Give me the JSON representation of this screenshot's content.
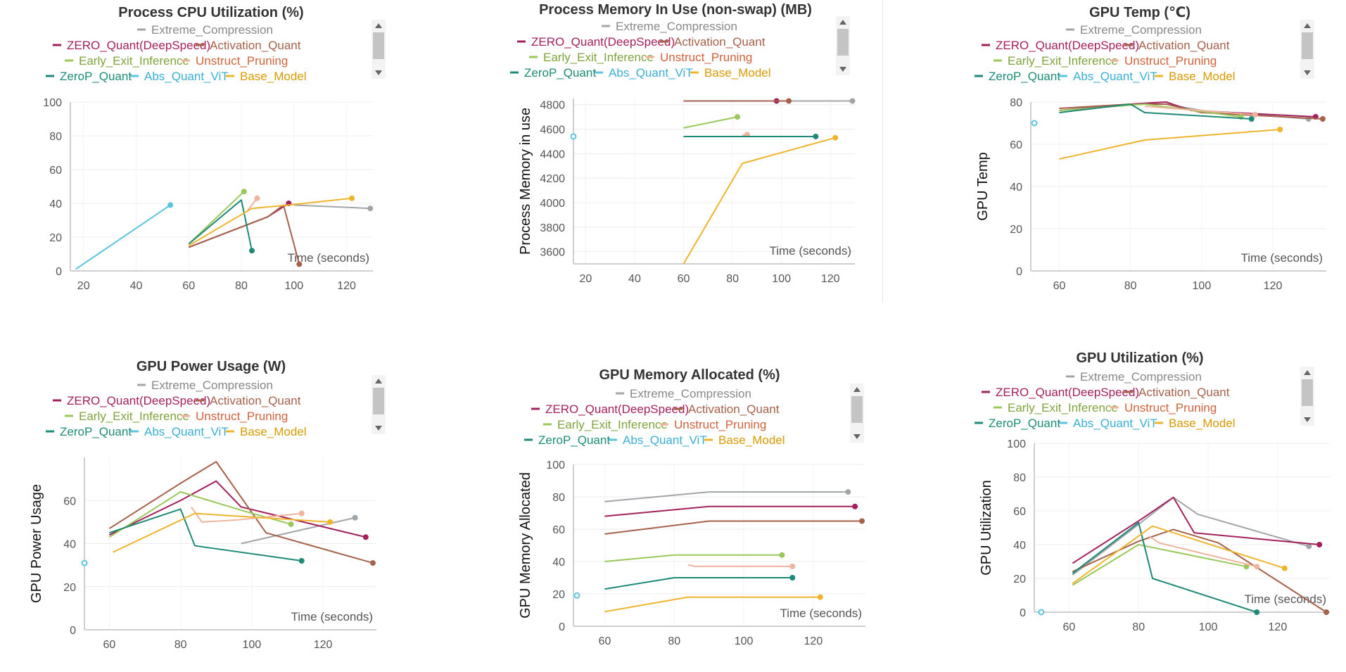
{
  "series_colors": {
    "Extreme_Compression": "#a2a5a8",
    "ZERO_Quant(DeepSpeed)": "#a3205c",
    "Activation_Quant": "#a5614a",
    "Early_Exit_Inference": "#9ac85a",
    "Unstruct_Pruning": "#f0b49c",
    "ZeroP_Quant": "#1d8a77",
    "Abs_Quant_ViT": "#5bc5e0",
    "Base_Model": "#eeb52c"
  },
  "legend_text_colors": {
    "Extreme_Compression": "#888888",
    "ZERO_Quant(DeepSpeed)": "#a3205c",
    "Activation_Quant": "#a5614a",
    "Early_Exit_Inference": "#7ea33c",
    "Unstruct_Pruning": "#d0623c",
    "ZeroP_Quant": "#1d8a77",
    "Abs_Quant_ViT": "#3aaed3",
    "Base_Model": "#d99a00"
  },
  "chart_data": [
    {
      "id": "cpu",
      "type": "line",
      "title": "Process CPU Utilization (%)",
      "ylabel": "Process CPU Utilization",
      "xlabel": "Time (seconds)",
      "xlim": [
        15,
        130
      ],
      "ylim": [
        0,
        100
      ],
      "xticks": [
        20,
        40,
        60,
        80,
        100,
        120
      ],
      "yticks": [
        0,
        20,
        40,
        60,
        80,
        100
      ],
      "series": [
        {
          "name": "Extreme_Compression",
          "points": [
            [
              100,
              39
            ],
            [
              129,
              37
            ]
          ]
        },
        {
          "name": "ZERO_Quant(DeepSpeed)",
          "points": [
            [
              60,
              14
            ],
            [
              90,
              32
            ],
            [
              98,
              40
            ]
          ]
        },
        {
          "name": "Activation_Quant",
          "points": [
            [
              60,
              14
            ],
            [
              90,
              32
            ],
            [
              96,
              39
            ],
            [
              102,
              4
            ]
          ]
        },
        {
          "name": "Early_Exit_Inference",
          "points": [
            [
              60,
              16
            ],
            [
              81,
              47
            ]
          ]
        },
        {
          "name": "Unstruct_Pruning",
          "points": [
            [
              82,
              35
            ],
            [
              86,
              43
            ]
          ]
        },
        {
          "name": "ZeroP_Quant",
          "points": [
            [
              60,
              16
            ],
            [
              80,
              42
            ],
            [
              84,
              12
            ]
          ]
        },
        {
          "name": "Abs_Quant_ViT",
          "points": [
            [
              17,
              1
            ],
            [
              53,
              39
            ]
          ]
        },
        {
          "name": "Base_Model",
          "points": [
            [
              60,
              15
            ],
            [
              84,
              37
            ],
            [
              98,
              39
            ],
            [
              122,
              43
            ]
          ]
        }
      ]
    },
    {
      "id": "mem",
      "type": "line",
      "title": "Process Memory In Use (non-swap) (MB)",
      "ylabel": "Process Memory in use",
      "xlabel": "Time (seconds)",
      "xlim": [
        15,
        130
      ],
      "ylim": [
        3500,
        4850
      ],
      "xticks": [
        20,
        40,
        60,
        80,
        100,
        120
      ],
      "yticks": [
        3600,
        3800,
        4000,
        4200,
        4400,
        4600,
        4800
      ],
      "series": [
        {
          "name": "Extreme_Compression",
          "points": [
            [
              104,
              4830
            ],
            [
              129,
              4830
            ]
          ]
        },
        {
          "name": "ZERO_Quant(DeepSpeed)",
          "points": [
            [
              60,
              4830
            ],
            [
              98,
              4830
            ]
          ]
        },
        {
          "name": "Activation_Quant",
          "points": [
            [
              60,
              4830
            ],
            [
              103,
              4830
            ]
          ]
        },
        {
          "name": "Early_Exit_Inference",
          "points": [
            [
              60,
              4610
            ],
            [
              82,
              4700
            ]
          ]
        },
        {
          "name": "Unstruct_Pruning",
          "points": [
            [
              84,
              4550
            ],
            [
              86,
              4555
            ]
          ]
        },
        {
          "name": "ZeroP_Quant",
          "points": [
            [
              60,
              4540
            ],
            [
              114,
              4540
            ]
          ]
        },
        {
          "name": "Abs_Quant_ViT",
          "points": [
            [
              15,
              4540
            ]
          ]
        },
        {
          "name": "Base_Model",
          "points": [
            [
              60,
              3500
            ],
            [
              84,
              4320
            ],
            [
              122,
              4530
            ]
          ]
        }
      ]
    },
    {
      "id": "gputemp",
      "type": "line",
      "title": "GPU Temp (℃)",
      "ylabel": "GPU Temp",
      "xlabel": "Time (seconds)",
      "xlim": [
        52,
        135
      ],
      "ylim": [
        0,
        80
      ],
      "xticks": [
        60,
        80,
        100,
        120
      ],
      "yticks": [
        0,
        20,
        40,
        60,
        80
      ],
      "series": [
        {
          "name": "Extreme_Compression",
          "points": [
            [
              60,
              76
            ],
            [
              80,
              79
            ],
            [
              90,
              79
            ],
            [
              100,
              76
            ],
            [
              130,
              72
            ]
          ]
        },
        {
          "name": "ZERO_Quant(DeepSpeed)",
          "points": [
            [
              60,
              76
            ],
            [
              80,
              79
            ],
            [
              90,
              80
            ],
            [
              97,
              76
            ],
            [
              132,
              73
            ]
          ]
        },
        {
          "name": "Activation_Quant",
          "points": [
            [
              60,
              77
            ],
            [
              80,
              79
            ],
            [
              90,
              79
            ],
            [
              100,
              75
            ],
            [
              134,
              72
            ]
          ]
        },
        {
          "name": "Early_Exit_Inference",
          "points": [
            [
              60,
              76
            ],
            [
              84,
              79
            ],
            [
              111,
              73
            ]
          ]
        },
        {
          "name": "Unstruct_Pruning",
          "points": [
            [
              84,
              78
            ],
            [
              115,
              74
            ]
          ]
        },
        {
          "name": "ZeroP_Quant",
          "points": [
            [
              60,
              75
            ],
            [
              80,
              79
            ],
            [
              84,
              75
            ],
            [
              114,
              72
            ]
          ]
        },
        {
          "name": "Abs_Quant_ViT",
          "points": [
            [
              53,
              70
            ]
          ]
        },
        {
          "name": "Base_Model",
          "points": [
            [
              60,
              53
            ],
            [
              84,
              62
            ],
            [
              122,
              67
            ]
          ]
        }
      ]
    },
    {
      "id": "gpupower",
      "type": "line",
      "title": "GPU Power Usage (W)",
      "ylabel": "GPU Power Usage",
      "xlabel": "Time (seconds)",
      "xlim": [
        53,
        135
      ],
      "ylim": [
        0,
        80
      ],
      "xticks": [
        60,
        80,
        100,
        120
      ],
      "yticks": [
        0,
        20,
        40,
        60
      ],
      "series": [
        {
          "name": "Extreme_Compression",
          "points": [
            [
              97,
              40
            ],
            [
              129,
              52
            ]
          ]
        },
        {
          "name": "ZERO_Quant(DeepSpeed)",
          "points": [
            [
              60,
              44
            ],
            [
              80,
              60
            ],
            [
              90,
              69
            ],
            [
              97,
              57
            ],
            [
              132,
              43
            ]
          ]
        },
        {
          "name": "Activation_Quant",
          "points": [
            [
              60,
              47
            ],
            [
              80,
              68
            ],
            [
              90,
              78
            ],
            [
              104,
              45
            ],
            [
              134,
              31
            ]
          ]
        },
        {
          "name": "Early_Exit_Inference",
          "points": [
            [
              60,
              43
            ],
            [
              80,
              64
            ],
            [
              98,
              55
            ],
            [
              111,
              49
            ]
          ]
        },
        {
          "name": "Unstruct_Pruning",
          "points": [
            [
              83,
              57
            ],
            [
              86,
              50
            ],
            [
              96,
              51
            ],
            [
              114,
              54
            ]
          ]
        },
        {
          "name": "ZeroP_Quant",
          "points": [
            [
              60,
              45
            ],
            [
              80,
              56
            ],
            [
              84,
              39
            ],
            [
              114,
              32
            ]
          ]
        },
        {
          "name": "Abs_Quant_ViT",
          "points": [
            [
              53,
              31
            ]
          ]
        },
        {
          "name": "Base_Model",
          "points": [
            [
              61,
              36
            ],
            [
              84,
              54
            ],
            [
              122,
              50
            ]
          ]
        }
      ]
    },
    {
      "id": "gpumem",
      "type": "line",
      "title": "GPU Memory Allocated (%)",
      "ylabel": "GPU Memory Allocated",
      "xlabel": "Time (seconds)",
      "xlim": [
        51,
        135
      ],
      "ylim": [
        0,
        100
      ],
      "xticks": [
        60,
        80,
        100,
        120
      ],
      "yticks": [
        0,
        20,
        40,
        60,
        80,
        100
      ],
      "series": [
        {
          "name": "Extreme_Compression",
          "points": [
            [
              60,
              77
            ],
            [
              90,
              83
            ],
            [
              130,
              83
            ]
          ]
        },
        {
          "name": "ZERO_Quant(DeepSpeed)",
          "points": [
            [
              60,
              68
            ],
            [
              90,
              74
            ],
            [
              132,
              74
            ]
          ]
        },
        {
          "name": "Activation_Quant",
          "points": [
            [
              60,
              57
            ],
            [
              90,
              65
            ],
            [
              134,
              65
            ]
          ]
        },
        {
          "name": "Early_Exit_Inference",
          "points": [
            [
              60,
              40
            ],
            [
              80,
              44
            ],
            [
              111,
              44
            ]
          ]
        },
        {
          "name": "Unstruct_Pruning",
          "points": [
            [
              84,
              38
            ],
            [
              86,
              37
            ],
            [
              114,
              37
            ]
          ]
        },
        {
          "name": "ZeroP_Quant",
          "points": [
            [
              60,
              23
            ],
            [
              80,
              30
            ],
            [
              114,
              30
            ]
          ]
        },
        {
          "name": "Abs_Quant_ViT",
          "points": [
            [
              52,
              19
            ]
          ]
        },
        {
          "name": "Base_Model",
          "points": [
            [
              60,
              9
            ],
            [
              84,
              18
            ],
            [
              122,
              18
            ]
          ]
        }
      ]
    },
    {
      "id": "gpuutil",
      "type": "line",
      "title": "GPU Utilization (%)",
      "ylabel": "GPU Utilization",
      "xlabel": "Time (seconds)",
      "xlim": [
        50,
        135
      ],
      "ylim": [
        0,
        100
      ],
      "xticks": [
        60,
        80,
        100,
        120
      ],
      "yticks": [
        0,
        20,
        40,
        60,
        80,
        100
      ],
      "series": [
        {
          "name": "Extreme_Compression",
          "points": [
            [
              61,
              22
            ],
            [
              80,
              52
            ],
            [
              90,
              68
            ],
            [
              97,
              58
            ],
            [
              129,
              39
            ]
          ]
        },
        {
          "name": "ZERO_Quant(DeepSpeed)",
          "points": [
            [
              61,
              29
            ],
            [
              80,
              54
            ],
            [
              90,
              68
            ],
            [
              96,
              47
            ],
            [
              132,
              40
            ]
          ]
        },
        {
          "name": "Activation_Quant",
          "points": [
            [
              61,
              24
            ],
            [
              80,
              42
            ],
            [
              90,
              49
            ],
            [
              103,
              41
            ],
            [
              134,
              0
            ]
          ]
        },
        {
          "name": "Early_Exit_Inference",
          "points": [
            [
              61,
              16
            ],
            [
              80,
              40
            ],
            [
              111,
              27
            ]
          ]
        },
        {
          "name": "Unstruct_Pruning",
          "points": [
            [
              83,
              45
            ],
            [
              86,
              41
            ],
            [
              114,
              27
            ]
          ]
        },
        {
          "name": "ZeroP_Quant",
          "points": [
            [
              61,
              23
            ],
            [
              80,
              53
            ],
            [
              84,
              20
            ],
            [
              114,
              0
            ]
          ]
        },
        {
          "name": "Abs_Quant_ViT",
          "points": [
            [
              52,
              0
            ]
          ]
        },
        {
          "name": "Base_Model",
          "points": [
            [
              61,
              17
            ],
            [
              84,
              51
            ],
            [
              122,
              26
            ]
          ]
        }
      ]
    }
  ]
}
